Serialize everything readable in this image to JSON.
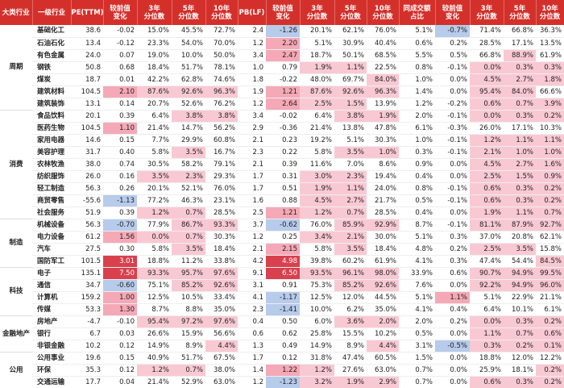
{
  "header": [
    "大类行业",
    "一级行业",
    "PE(TTM)",
    "较前值\n变化",
    "3年\n分位数",
    "5年\n分位数",
    "10年\n分位数",
    "PB(LF)",
    "较前值\n变化",
    "3年\n分位数",
    "5年\n分位数",
    "10年\n分位数",
    "同成交额\n占比",
    "较前值\n变化",
    "3年\n分位数",
    "5年\n分位数",
    "10年\n分位数"
  ],
  "groups": [
    {
      "label": "周期",
      "rows": [
        {
          "name": "基础化工",
          "values": [
            "38.6",
            "-0.02",
            "15.0%",
            "45.5%",
            "72.7%",
            "2.4",
            "-1.26",
            "20.1%",
            "62.1%",
            "76.0%",
            "5.1%",
            "-0.7%",
            "71.4%",
            "66.8%",
            "36.3%"
          ]
        },
        {
          "name": "石油石化",
          "values": [
            "13.4",
            "-0.12",
            "23.3%",
            "54.0%",
            "70.0%",
            "1.2",
            "2.20",
            "5.1%",
            "30.9%",
            "40.4%",
            "0.6%",
            "0.2%",
            "28.5%",
            "17.1%",
            "13.5%"
          ]
        },
        {
          "name": "有色金属",
          "values": [
            "24.0",
            "0.07",
            "19.0%",
            "10.0%",
            "50.0%",
            "3.4",
            "2.47",
            "18.7%",
            "50.1%",
            "68.5%",
            "5.5%",
            "0.5%",
            "66.8%",
            "88.9%",
            "61.9%"
          ]
        },
        {
          "name": "钢铁",
          "values": [
            "50.8",
            "0.68",
            "18.4%",
            "51.7%",
            "78.1%",
            "1.0",
            "0.79",
            "1.9%",
            "1.1%",
            "22.5%",
            "0.8%",
            "-0.1%",
            "0.0%",
            "0.3%",
            "0.3%"
          ]
        },
        {
          "name": "煤炭",
          "values": [
            "18.7",
            "0.01",
            "42.2%",
            "62.8%",
            "74.6%",
            "1.8",
            "-0.22",
            "48.0%",
            "69.7%",
            "84.0%",
            "1.0%",
            "0.0%",
            "4.5%",
            "2.7%",
            "1.8%"
          ]
        },
        {
          "name": "建筑材料",
          "values": [
            "104.5",
            "2.10",
            "87.6%",
            "92.6%",
            "96.3%",
            "1.9",
            "1.21",
            "87.6%",
            "92.6%",
            "96.3%",
            "1.4%",
            "0.0%",
            "95.4%",
            "84.0%",
            "66.6%"
          ]
        },
        {
          "name": "建筑装饰",
          "values": [
            "13.1",
            "0.14",
            "20.7%",
            "52.6%",
            "76.2%",
            "1.2",
            "2.64",
            "2.5%",
            "1.5%",
            "13.9%",
            "1.2%",
            "-0.2%",
            "0.6%",
            "0.7%",
            "3.9%"
          ]
        }
      ]
    },
    {
      "label": "消费",
      "rows": [
        {
          "name": "食品饮料",
          "values": [
            "20.1",
            "0.39",
            "6.4%",
            "3.8%",
            "3.8%",
            "3.4",
            "-0.02",
            "6.4%",
            "3.8%",
            "1.9%",
            "2.0%",
            "-0.1%",
            "0.0%",
            "0.3%",
            "0.2%"
          ]
        },
        {
          "name": "医药生物",
          "values": [
            "104.5",
            "1.10",
            "21.4%",
            "14.7%",
            "56.2%",
            "2.9",
            "-0.36",
            "21.4%",
            "13.8%",
            "47.8%",
            "6.1%",
            "-0.3%",
            "26.0%",
            "17.1%",
            "10.3%"
          ]
        },
        {
          "name": "家用电器",
          "values": [
            "14.6",
            "0.15",
            "7.7%",
            "29.9%",
            "60.8%",
            "2.1",
            "0.23",
            "19.2%",
            "5.1%",
            "30.3%",
            "1.0%",
            "-0.1%",
            "1.2%",
            "1.1%",
            "1.1%"
          ]
        },
        {
          "name": "美容护理",
          "values": [
            "31.7",
            "0.40",
            "5.8%",
            "3.5%",
            "16.7%",
            "2.3",
            "0.22",
            "5.8%",
            "3.5%",
            "1.0%",
            "0.3%",
            "-0.1%",
            "2.1%",
            "1.0%",
            "1.0%"
          ]
        },
        {
          "name": "农林牧渔",
          "values": [
            "38.0",
            "0.74",
            "30.5%",
            "58.2%",
            "79.1%",
            "2.1",
            "0.39",
            "11.6%",
            "7.0%",
            "8.6%",
            "0.9%",
            "0.0%",
            "4.5%",
            "2.7%",
            "1.6%"
          ]
        },
        {
          "name": "纺织服饰",
          "values": [
            "26.0",
            "0.16",
            "3.5%",
            "2.3%",
            "29.3%",
            "1.7",
            "0.31",
            "3.0%",
            "2.3%",
            "19.4%",
            "0.4%",
            "0.0%",
            "2.5%",
            "1.5%",
            "0.9%"
          ]
        },
        {
          "name": "轻工制造",
          "values": [
            "56.3",
            "0.26",
            "20.1%",
            "52.1%",
            "76.0%",
            "1.7",
            "0.51",
            "1.9%",
            "1.1%",
            "24.0%",
            "0.8%",
            "-0.1%",
            "0.6%",
            "0.3%",
            "0.2%"
          ]
        },
        {
          "name": "商贸零售",
          "values": [
            "-55.6",
            "-1.13",
            "77.2%",
            "46.3%",
            "23.1%",
            "1.6",
            "0.88",
            "4.5%",
            "2.7%",
            "21.7%",
            "0.5%",
            "-0.1%",
            "0.6%",
            "0.3%",
            "0.2%"
          ]
        },
        {
          "name": "社会服务",
          "values": [
            "51.9",
            "0.39",
            "1.2%",
            "0.7%",
            "28.5%",
            "2.5",
            "1.21",
            "1.2%",
            "0.7%",
            "28.5%",
            "0.4%",
            "0.0%",
            "1.9%",
            "1.1%",
            "0.7%"
          ]
        }
      ]
    },
    {
      "label": "制造",
      "rows": [
        {
          "name": "机械设备",
          "values": [
            "56.3",
            "-0.70",
            "77.9%",
            "86.7%",
            "93.3%",
            "3.7",
            "-0.62",
            "76.0%",
            "85.9%",
            "92.9%",
            "8.7%",
            "-0.1%",
            "81.1%",
            "87.9%",
            "92.7%"
          ]
        },
        {
          "name": "电力设备",
          "values": [
            "61.2",
            "1.56",
            "0.0%",
            "0.7%",
            "30.3%",
            "1.2",
            "0.25",
            "3.4%",
            "2.1%",
            "30.0%",
            "5.1%",
            "0.3%",
            "37.0%",
            "20.8%",
            "62.1%"
          ]
        },
        {
          "name": "汽车",
          "values": [
            "27.5",
            "0.30",
            "5.8%",
            "3.5%",
            "18.4%",
            "2.1",
            "2.15",
            "5.8%",
            "3.5%",
            "18.4%",
            "4.8%",
            "0.2%",
            "2.5%",
            "3.5%",
            "15.8%"
          ]
        },
        {
          "name": "国防军工",
          "values": [
            "101.5",
            "3.01",
            "18.8%",
            "11.2%",
            "33.8%",
            "4.2",
            "4.98",
            "39.8%",
            "60.2%",
            "61.9%",
            "4.1%",
            "0.3%",
            "47.4%",
            "54.4%",
            "84.5%"
          ]
        }
      ]
    },
    {
      "label": "科技",
      "rows": [
        {
          "name": "电子",
          "values": [
            "135.1",
            "7.50",
            "93.3%",
            "95.7%",
            "97.6%",
            "9.1",
            "6.50",
            "93.5%",
            "96.1%",
            "98.0%",
            "33.9%",
            "0.6%",
            "90.7%",
            "94.9%",
            "99.5%"
          ]
        },
        {
          "name": "通信",
          "values": [
            "34.7",
            "-0.60",
            "75.1%",
            "85.2%",
            "92.6%",
            "3.1",
            "0.91",
            "75.3%",
            "85.2%",
            "92.6%",
            "7.6%",
            "0.0%",
            "92.2%",
            "94.9%",
            "96.0%"
          ]
        },
        {
          "name": "计算机",
          "values": [
            "159.2",
            "1.00",
            "12.5%",
            "10.5%",
            "33.4%",
            "4.1",
            "-1.17",
            "12.5%",
            "12.0%",
            "44.5%",
            "5.1%",
            "1.1%",
            "5.1%",
            "22.9%",
            "21.1%"
          ]
        },
        {
          "name": "传媒",
          "values": [
            "53.3",
            "1.30",
            "8.7%",
            "8.8%",
            "35.0%",
            "2.3",
            "-1.41",
            "10.0%",
            "6.2%",
            "35.0%",
            "4.1%",
            "0.4%",
            "6.4%",
            "10.1%",
            "6.1%"
          ]
        }
      ]
    },
    {
      "label": "金融地产",
      "rows": [
        {
          "name": "房地产",
          "values": [
            "-4.7",
            "-0.10",
            "95.4%",
            "97.2%",
            "97.6%",
            "0.4",
            "0.50",
            "6.0%",
            "3.6%",
            "2.0%",
            "2.0%",
            "0.2%",
            "0.0%",
            "0.3%",
            "0.2%"
          ]
        },
        {
          "name": "银行",
          "values": [
            "6.7",
            "0.03",
            "26.6%",
            "15.9%",
            "56.6%",
            "0.6",
            "0.62",
            "25.8%",
            "15.5%",
            "10.2%",
            "0.5%",
            "0.0%",
            "1.1%",
            "0.7%",
            "0.6%"
          ]
        },
        {
          "name": "非银金融",
          "values": [
            "10.2",
            "0.12",
            "14.9%",
            "8.9%",
            "4.4%",
            "1.3",
            "0.49",
            "14.9%",
            "8.9%",
            "4.4%",
            "3.1%",
            "-0.5%",
            "0.3%",
            "0.2%",
            "0.1%"
          ]
        }
      ]
    },
    {
      "label": "公用",
      "rows": [
        {
          "name": "公用事业",
          "values": [
            "19.6",
            "0.15",
            "40.9%",
            "51.7%",
            "67.5%",
            "1.7",
            "0.12",
            "31.8%",
            "47.4%",
            "60.5%",
            "1.5%",
            "0.0%",
            "18.8%",
            "12.0%",
            "12.2%"
          ]
        },
        {
          "name": "环保",
          "values": [
            "35.3",
            "0.12",
            "1.2%",
            "0.7%",
            "38.0%",
            "1.4",
            "1.22",
            "1.2%",
            "27.6%",
            "63.0%",
            "0.7%",
            "0.0%",
            "25.9%",
            "18.1%",
            "0.2%"
          ]
        },
        {
          "name": "交通运输",
          "values": [
            "17.7",
            "0.04",
            "21.4%",
            "52.9%",
            "63.0%",
            "1.2",
            "-1.23",
            "3.2%",
            "1.9%",
            "2.9%",
            "0.7%",
            "0.0%",
            "0.6%",
            "0.3%",
            "0.2%"
          ]
        }
      ]
    }
  ]
}
